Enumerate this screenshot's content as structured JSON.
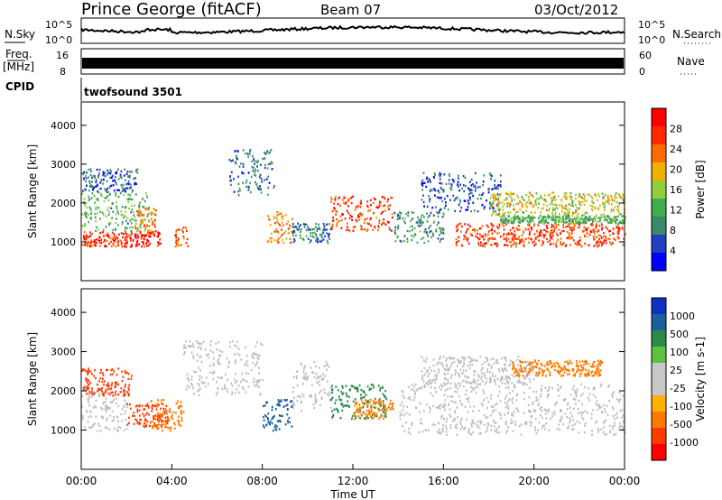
{
  "header": {
    "station": "Prince George (fitACF)",
    "beam": "Beam 07",
    "date": "03/Oct/2012"
  },
  "panels": {
    "nsky": {
      "label": "N.Sky",
      "axis_top": "10^5",
      "axis_bottom": "10^0"
    },
    "nsearch": {
      "label": "N.Search",
      "axis_top": "10^5",
      "axis_bottom": "10^0"
    },
    "freq": {
      "label_1": "Freq.",
      "label_2": "[MHz]",
      "axis_top": "16",
      "axis_bottom": "8"
    },
    "nave": {
      "label": "Nave",
      "axis_top": "60",
      "axis_bottom": "0"
    },
    "cpid": {
      "label": "CPID",
      "value": "twofsound 3501"
    }
  },
  "colors": {
    "power_scale": [
      "#0000ff",
      "#2040c0",
      "#3a8a6a",
      "#3fae4f",
      "#8fcf3a",
      "#f0b000",
      "#ff6a00",
      "#ff2a00",
      "#ff0000"
    ],
    "velocity_scale": [
      "#1030c0",
      "#1a5fa0",
      "#2a8a4a",
      "#60c040",
      "#c8c8c8",
      "#c8c8c8",
      "#ffb000",
      "#ff7a00",
      "#ff3a00",
      "#ff0000"
    ],
    "ground_scatter": "#bebebe"
  },
  "chart_data": [
    {
      "type": "heatmap",
      "name": "Power",
      "ylabel": "Slant Range [km]",
      "yticks": [
        "1000",
        "2000",
        "3000",
        "4000"
      ],
      "ylim": [
        0,
        4600
      ],
      "colorbar_label": "Power [dB]",
      "colorbar_ticks": [
        "4",
        "8",
        "12",
        "16",
        "20",
        "24",
        "28"
      ],
      "colorbar_range": [
        0,
        32
      ],
      "bands": [
        {
          "t_start": 0.0,
          "t_end": 3.5,
          "r_low": 900,
          "r_high": 1300,
          "value": 28
        },
        {
          "t_start": 0.0,
          "t_end": 3.0,
          "r_low": 1300,
          "r_high": 2300,
          "value": 12
        },
        {
          "t_start": 0.0,
          "t_end": 2.5,
          "r_low": 2300,
          "r_high": 2900,
          "value": 6
        },
        {
          "t_start": 2.3,
          "t_end": 3.3,
          "r_low": 1300,
          "r_high": 1900,
          "value": 22
        },
        {
          "t_start": 4.1,
          "t_end": 4.7,
          "r_low": 900,
          "r_high": 1400,
          "value": 24
        },
        {
          "t_start": 6.5,
          "t_end": 8.5,
          "r_low": 2200,
          "r_high": 3400,
          "value": 8
        },
        {
          "t_start": 8.2,
          "t_end": 9.3,
          "r_low": 1000,
          "r_high": 1800,
          "value": 22
        },
        {
          "t_start": 9.3,
          "t_end": 11.0,
          "r_low": 1000,
          "r_high": 1500,
          "value": 8
        },
        {
          "t_start": 11.0,
          "t_end": 13.8,
          "r_low": 1300,
          "r_high": 2200,
          "value": 26
        },
        {
          "t_start": 13.8,
          "t_end": 16.0,
          "r_low": 1000,
          "r_high": 1800,
          "value": 10
        },
        {
          "t_start": 15.0,
          "t_end": 18.5,
          "r_low": 1800,
          "r_high": 2800,
          "value": 6
        },
        {
          "t_start": 18.0,
          "t_end": 24.0,
          "r_low": 1700,
          "r_high": 2300,
          "value": 18
        },
        {
          "t_start": 16.5,
          "t_end": 24.0,
          "r_low": 900,
          "r_high": 1500,
          "value": 26
        },
        {
          "t_start": 18.5,
          "t_end": 24.0,
          "r_low": 1500,
          "r_high": 1700,
          "value": 12
        }
      ]
    },
    {
      "type": "heatmap",
      "name": "Velocity",
      "xlabel": "Time UT",
      "xticks": [
        "00:00",
        "04:00",
        "08:00",
        "12:00",
        "16:00",
        "20:00",
        "00:00"
      ],
      "xlim": [
        0,
        24
      ],
      "ylabel": "Slant Range [km]",
      "yticks": [
        "1000",
        "2000",
        "3000",
        "4000"
      ],
      "ylim": [
        0,
        4600
      ],
      "colorbar_label": "Velocity [m s-1]",
      "colorbar_ticks": [
        "1000",
        "500",
        "100",
        "25",
        "-25",
        "-100",
        "-500",
        "-1000"
      ],
      "bands": [
        {
          "t_start": 0.0,
          "t_end": 2.0,
          "r_low": 1000,
          "r_high": 2000,
          "value": 0,
          "ground_scatter": true
        },
        {
          "t_start": 0.0,
          "t_end": 2.2,
          "r_low": 1900,
          "r_high": 2600,
          "value": -600
        },
        {
          "t_start": 2.0,
          "t_end": 3.8,
          "r_low": 1100,
          "r_high": 1700,
          "value": -800
        },
        {
          "t_start": 3.0,
          "t_end": 4.5,
          "r_low": 1000,
          "r_high": 1800,
          "value": -200
        },
        {
          "t_start": 4.5,
          "t_end": 8.0,
          "r_low": 1900,
          "r_high": 3300,
          "value": 0,
          "ground_scatter": true
        },
        {
          "t_start": 8.0,
          "t_end": 9.3,
          "r_low": 1000,
          "r_high": 1800,
          "value": 600
        },
        {
          "t_start": 9.3,
          "t_end": 11.0,
          "r_low": 1500,
          "r_high": 2800,
          "value": 0,
          "ground_scatter": true
        },
        {
          "t_start": 11.0,
          "t_end": 13.5,
          "r_low": 1300,
          "r_high": 2200,
          "value": 200
        },
        {
          "t_start": 12.0,
          "t_end": 13.8,
          "r_low": 1300,
          "r_high": 1800,
          "value": -150
        },
        {
          "t_start": 14.0,
          "t_end": 24.0,
          "r_low": 900,
          "r_high": 2200,
          "value": 0,
          "ground_scatter": true
        },
        {
          "t_start": 15.0,
          "t_end": 20.0,
          "r_low": 2200,
          "r_high": 2900,
          "value": 0,
          "ground_scatter": true
        },
        {
          "t_start": 19.0,
          "t_end": 23.0,
          "r_low": 2400,
          "r_high": 2800,
          "value": -300
        }
      ]
    }
  ]
}
